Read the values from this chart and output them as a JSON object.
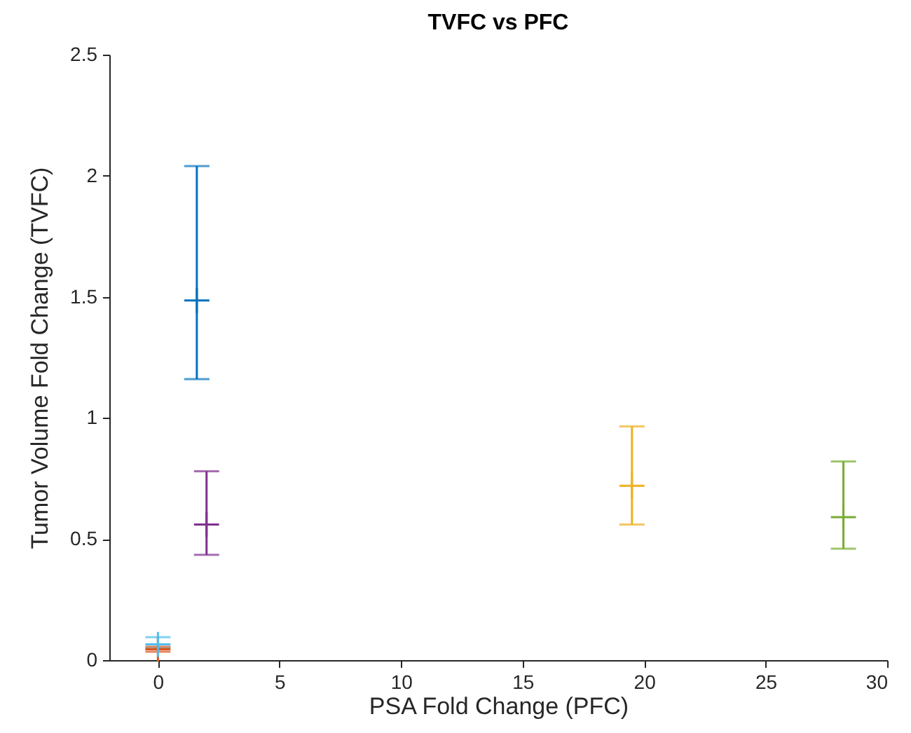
{
  "chart_data": {
    "type": "scatter",
    "title": "TVFC vs PFC",
    "xlabel": "PSA Fold Change (PFC)",
    "ylabel": "Tumor Volume Fold Change (TVFC)",
    "xlim": [
      -2,
      30
    ],
    "xticks": [
      0,
      5,
      10,
      15,
      20,
      25,
      30
    ],
    "ylim": [
      0,
      2.5
    ],
    "yticks": [
      0,
      0.5,
      1,
      1.5,
      2,
      2.5
    ],
    "grid": false,
    "marker": "cross",
    "series": [
      {
        "color": "#0072bd",
        "x": [
          1.6
        ],
        "values": [
          1.485
        ],
        "errors": [
          [
            1.16,
            2.04
          ]
        ]
      },
      {
        "color": "#d95319",
        "x": [
          0
        ],
        "values": [
          0.045
        ],
        "errors": [
          [
            0.035,
            0.055
          ]
        ]
      },
      {
        "color": "#edb120",
        "x": [
          19.5
        ],
        "values": [
          0.72
        ],
        "errors": [
          [
            0.56,
            0.965
          ]
        ]
      },
      {
        "color": "#7e2f8e",
        "x": [
          2
        ],
        "values": [
          0.56
        ],
        "errors": [
          [
            0.435,
            0.78
          ]
        ]
      },
      {
        "color": "#77ac30",
        "x": [
          28.2
        ],
        "values": [
          0.59
        ],
        "errors": [
          [
            0.46,
            0.82
          ]
        ]
      },
      {
        "color": "#4dbeee",
        "x": [
          0
        ],
        "values": [
          0.065
        ],
        "errors": [
          [
            0.05,
            0.095
          ]
        ]
      }
    ]
  }
}
